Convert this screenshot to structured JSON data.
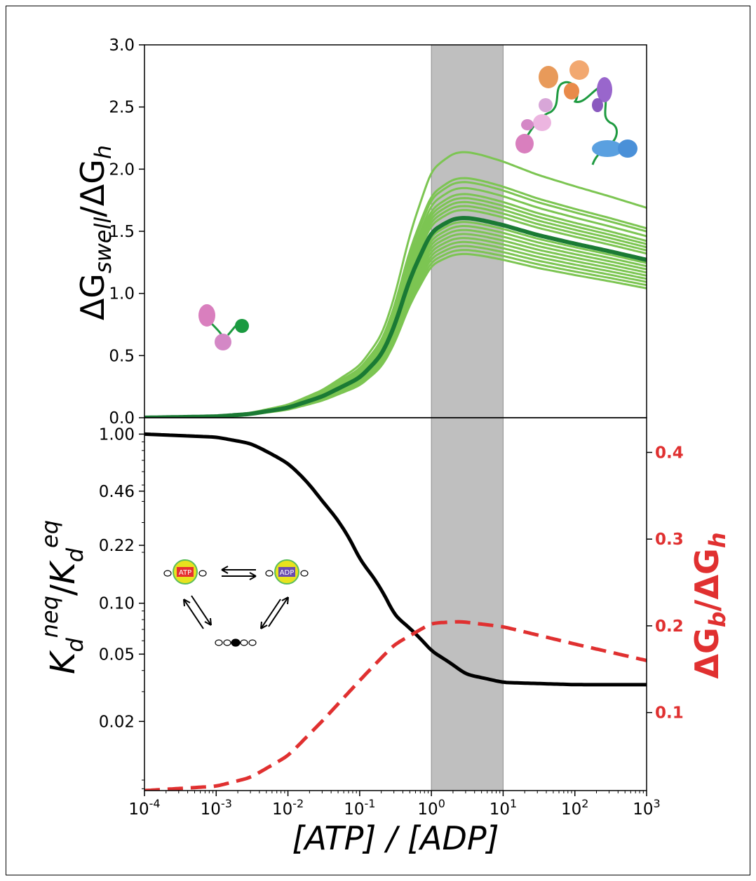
{
  "chart_data": [
    {
      "panel": "top",
      "type": "line",
      "x_scale": "log",
      "xlim": [
        0.0001,
        1000
      ],
      "ylim": [
        0,
        3.0
      ],
      "yticks": [
        0.0,
        0.5,
        1.0,
        1.5,
        2.0,
        2.5,
        3.0
      ],
      "ytick_labels": [
        "0.0",
        "0.5",
        "1.0",
        "1.5",
        "2.0",
        "2.5",
        "3.0"
      ],
      "ylabel": "ΔG_swell/ΔG_h",
      "shaded_x_range": [
        1,
        10
      ],
      "colors": {
        "ensemble": "#7cc552",
        "mean": "#1a7a34",
        "shade": "#bfbfbf"
      },
      "mean_series": {
        "x": [
          0.0001,
          0.001,
          0.003,
          0.01,
          0.03,
          0.1,
          0.2,
          0.3,
          0.5,
          1,
          2,
          3,
          5,
          10,
          30,
          100,
          300,
          1000
        ],
        "y": [
          0.0,
          0.01,
          0.03,
          0.08,
          0.17,
          0.32,
          0.5,
          0.72,
          1.12,
          1.5,
          1.6,
          1.61,
          1.59,
          1.55,
          1.47,
          1.4,
          1.34,
          1.27
        ]
      },
      "ensemble_scales": [
        0.82,
        0.84,
        0.86,
        0.88,
        0.9,
        0.92,
        0.94,
        0.96,
        0.98,
        1.0,
        1.04,
        1.06,
        1.08,
        1.1,
        1.12,
        1.15,
        1.18,
        1.2,
        1.33
      ]
    },
    {
      "panel": "bottom",
      "type": "line",
      "x_scale": "log",
      "xlim": [
        0.0001,
        1000
      ],
      "xticks_exp": [
        "-4",
        "-3",
        "-2",
        "-1",
        "0",
        "1",
        "2",
        "3"
      ],
      "xtick_base": "10",
      "xlabel": "[ATP] / [ADP]",
      "y_scale": "log",
      "ylim": [
        0.0078,
        1.25
      ],
      "yticks": [
        1.0,
        0.46,
        0.22,
        0.1,
        0.05,
        0.02
      ],
      "ytick_labels": [
        "1.00",
        "0.46",
        "0.22",
        "0.10",
        "0.05",
        "0.02"
      ],
      "ylabel": "K_d^neq/K_d^eq",
      "y2lim": [
        0.01,
        0.44
      ],
      "y2ticks": [
        0.1,
        0.2,
        0.3,
        0.4
      ],
      "y2tick_labels": [
        "0.1",
        "0.2",
        "0.3",
        "0.4"
      ],
      "y2label": "ΔG_b/ΔG_h",
      "shaded_x_range": [
        1,
        10
      ],
      "series": [
        {
          "axis": "left",
          "style": "solid",
          "color": "#000000",
          "x": [
            0.0001,
            0.001,
            0.003,
            0.01,
            0.03,
            0.1,
            0.3,
            1,
            3,
            10,
            100,
            1000
          ],
          "y": [
            1.0,
            0.96,
            0.88,
            0.67,
            0.4,
            0.18,
            0.085,
            0.052,
            0.038,
            0.034,
            0.033,
            0.033
          ]
        },
        {
          "axis": "right",
          "style": "dashed",
          "color": "#e03030",
          "x": [
            0.0001,
            0.001,
            0.003,
            0.01,
            0.03,
            0.1,
            0.3,
            1,
            2.5,
            10,
            100,
            1000
          ],
          "y": [
            0.01,
            0.015,
            0.025,
            0.05,
            0.09,
            0.137,
            0.178,
            0.203,
            0.205,
            0.199,
            0.179,
            0.16
          ]
        }
      ]
    }
  ],
  "inset": {
    "atp_label": "ATP",
    "adp_label": "ADP"
  }
}
